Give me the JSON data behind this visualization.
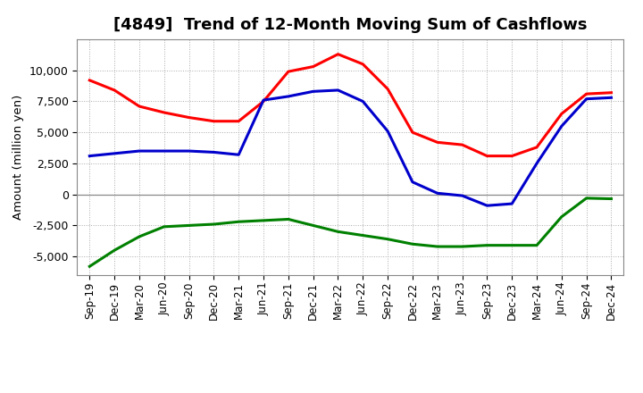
{
  "title": "[4849]  Trend of 12-Month Moving Sum of Cashflows",
  "ylabel": "Amount (million yen)",
  "x_labels": [
    "Sep-19",
    "Dec-19",
    "Mar-20",
    "Jun-20",
    "Sep-20",
    "Dec-20",
    "Mar-21",
    "Jun-21",
    "Sep-21",
    "Dec-21",
    "Mar-22",
    "Jun-22",
    "Sep-22",
    "Dec-22",
    "Mar-23",
    "Jun-23",
    "Sep-23",
    "Dec-23",
    "Mar-24",
    "Jun-24",
    "Sep-24",
    "Dec-24"
  ],
  "operating": [
    9200,
    8400,
    7100,
    6600,
    6200,
    5900,
    5900,
    7500,
    9900,
    10300,
    11300,
    10500,
    8500,
    5000,
    4200,
    4000,
    3100,
    3100,
    3800,
    6500,
    8100,
    8200
  ],
  "investing": [
    -5800,
    -4500,
    -3400,
    -2600,
    -2500,
    -2400,
    -2200,
    -2100,
    -2000,
    -2500,
    -3000,
    -3300,
    -3600,
    -4000,
    -4200,
    -4200,
    -4100,
    -4100,
    -4100,
    -1800,
    -300,
    -350
  ],
  "free": [
    3100,
    3300,
    3500,
    3500,
    3500,
    3400,
    3200,
    7600,
    7900,
    8300,
    8400,
    7500,
    5100,
    1000,
    100,
    -100,
    -900,
    -750,
    2500,
    5500,
    7700,
    7800
  ],
  "operating_color": "#FF0000",
  "investing_color": "#008000",
  "free_color": "#0000CC",
  "background_color": "#FFFFFF",
  "grid_color": "#AAAAAA",
  "ylim": [
    -6500,
    12500
  ],
  "yticks": [
    -5000,
    -2500,
    0,
    2500,
    5000,
    7500,
    10000
  ],
  "title_fontsize": 13,
  "axis_fontsize": 9,
  "legend_fontsize": 10,
  "line_width": 2.2
}
